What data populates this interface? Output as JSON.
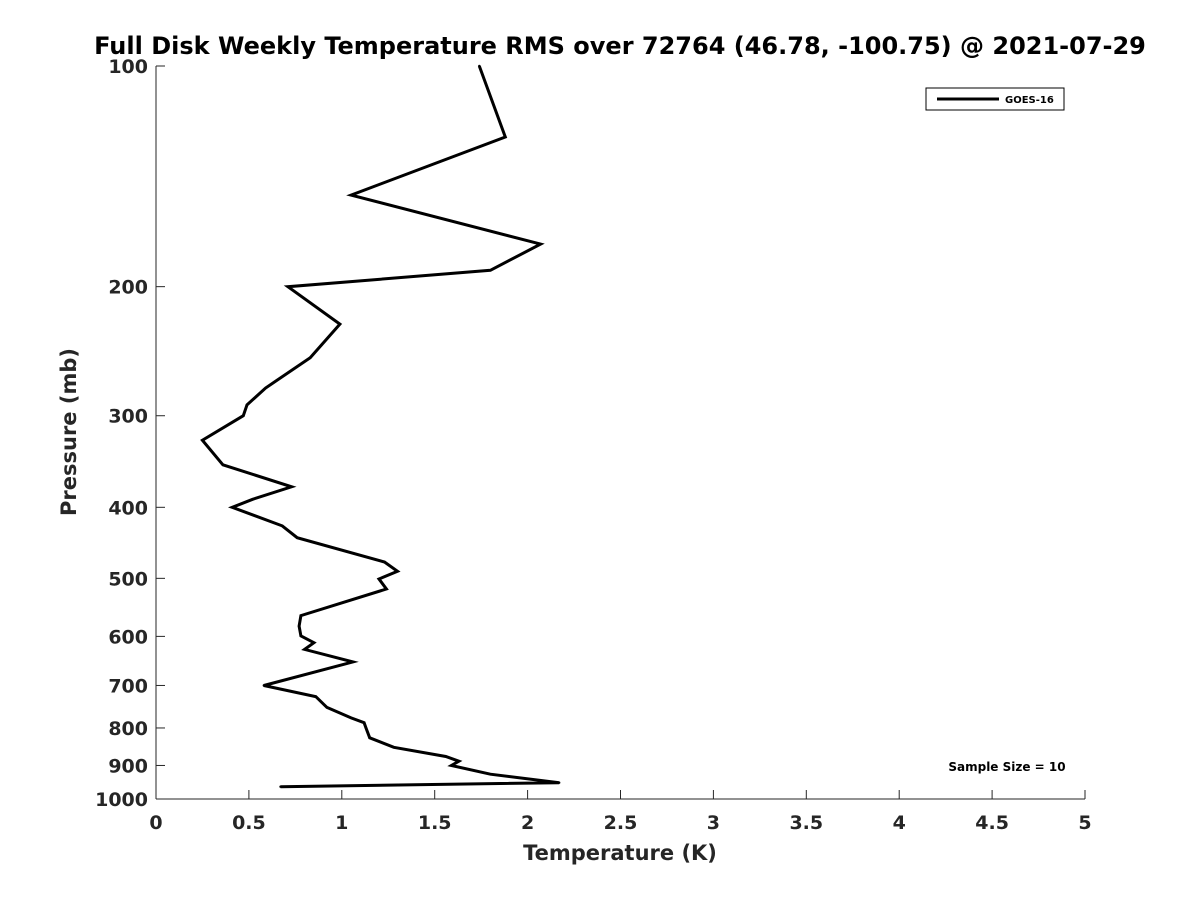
{
  "chart_data": {
    "type": "line",
    "title": "Full Disk Weekly Temperature RMS over 72764 (46.78, -100.75) @ 2021-07-29",
    "xlabel": "Temperature (K)",
    "ylabel": "Pressure (mb)",
    "xlim": [
      0,
      5
    ],
    "ylim": [
      100,
      1000
    ],
    "yscale": "log",
    "y_reversed": true,
    "x_ticks": [
      "0",
      "0.5",
      "1",
      "1.5",
      "2",
      "2.5",
      "3",
      "3.5",
      "4",
      "4.5",
      "5"
    ],
    "y_ticks": [
      "100",
      "200",
      "300",
      "400",
      "500",
      "600",
      "700",
      "800",
      "900",
      "1000"
    ],
    "grid": false,
    "legend_position": "top-right",
    "annotation": "Sample Size = 10",
    "series": [
      {
        "name": "GOES-16",
        "color": "#000000",
        "points": [
          [
            1.74,
            100
          ],
          [
            1.88,
            125
          ],
          [
            1.05,
            150
          ],
          [
            2.07,
            175
          ],
          [
            1.8,
            190
          ],
          [
            0.71,
            200
          ],
          [
            0.99,
            225
          ],
          [
            0.83,
            250
          ],
          [
            0.59,
            275
          ],
          [
            0.49,
            290
          ],
          [
            0.47,
            300
          ],
          [
            0.25,
            324
          ],
          [
            0.36,
            350
          ],
          [
            0.73,
            375
          ],
          [
            0.52,
            390
          ],
          [
            0.41,
            400
          ],
          [
            0.68,
            424
          ],
          [
            0.76,
            440
          ],
          [
            1.23,
            475
          ],
          [
            1.3,
            489
          ],
          [
            1.2,
            501
          ],
          [
            1.24,
            517
          ],
          [
            0.78,
            562
          ],
          [
            0.77,
            581
          ],
          [
            0.78,
            599
          ],
          [
            0.85,
            612
          ],
          [
            0.8,
            625
          ],
          [
            1.06,
            650
          ],
          [
            0.58,
            700
          ],
          [
            0.86,
            725
          ],
          [
            0.92,
            750
          ],
          [
            1.05,
            775
          ],
          [
            1.12,
            787
          ],
          [
            1.13,
            800
          ],
          [
            1.15,
            825
          ],
          [
            1.28,
            850
          ],
          [
            1.56,
            875
          ],
          [
            1.63,
            888
          ],
          [
            1.59,
            900
          ],
          [
            1.8,
            925
          ],
          [
            2.17,
            950
          ],
          [
            0.67,
            962
          ]
        ]
      }
    ]
  }
}
